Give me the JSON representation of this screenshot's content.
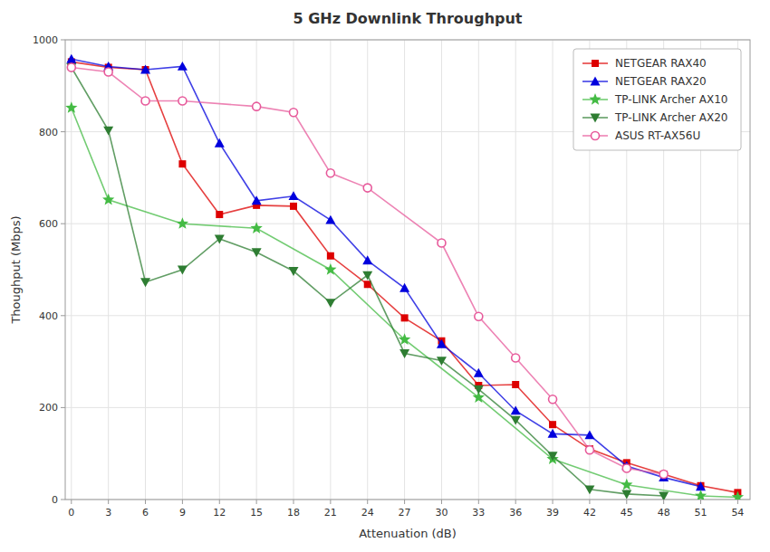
{
  "chart_data": {
    "type": "line",
    "title": "5 GHz Downlink Throughput",
    "x_label": "Attenuation (dB)",
    "y_label": "Thoughput (Mbps)",
    "xlim": [
      -0.5,
      55
    ],
    "ylim": [
      0,
      1000
    ],
    "xticks": [
      0,
      3,
      6,
      9,
      12,
      15,
      18,
      21,
      24,
      27,
      30,
      33,
      36,
      39,
      42,
      45,
      48,
      51,
      54
    ],
    "yticks": [
      0,
      200,
      400,
      600,
      800,
      1000
    ],
    "grid": true,
    "legend": "upper right",
    "series": [
      {
        "name": "NETGEAR RAX40",
        "color": "#dd0000",
        "marker": "square",
        "line_style": "solid",
        "x": [
          0,
          3,
          6,
          9,
          12,
          15,
          18,
          21,
          24,
          27,
          30,
          33,
          36,
          39,
          42,
          45,
          48,
          51,
          54
        ],
        "values": [
          952,
          940,
          935,
          730,
          620,
          640,
          638,
          530,
          468,
          395,
          345,
          248,
          250,
          163,
          110,
          80,
          55,
          30,
          15
        ]
      },
      {
        "name": "NETGEAR RAX20",
        "color": "#0000dd",
        "marker": "triangle-up",
        "line_style": "solid",
        "x": [
          0,
          3,
          6,
          9,
          12,
          15,
          18,
          21,
          24,
          27,
          30,
          33,
          36,
          39,
          42,
          45,
          48,
          51
        ],
        "values": [
          958,
          942,
          935,
          942,
          775,
          650,
          660,
          608,
          520,
          460,
          338,
          275,
          193,
          143,
          140,
          73,
          48,
          28
        ]
      },
      {
        "name": "TP-LINK Archer AX10",
        "color": "#44bb44",
        "marker": "star",
        "line_style": "solid",
        "x": [
          0,
          3,
          9,
          15,
          21,
          27,
          33,
          39,
          45,
          51,
          54
        ],
        "values": [
          852,
          652,
          600,
          590,
          500,
          348,
          222,
          88,
          32,
          8,
          5
        ]
      },
      {
        "name": "TP-LINK Archer AX20",
        "color": "#2e7d32",
        "marker": "triangle-down",
        "line_style": "solid",
        "x": [
          0,
          3,
          6,
          9,
          12,
          15,
          18,
          21,
          24,
          27,
          30,
          33,
          36,
          39,
          42,
          45,
          48
        ],
        "values": [
          940,
          803,
          473,
          500,
          567,
          538,
          497,
          428,
          488,
          318,
          302,
          240,
          173,
          95,
          22,
          12,
          8
        ]
      },
      {
        "name": "ASUS RT-AX56U",
        "color": "#e75a9b",
        "marker": "circle-open",
        "line_style": "solid",
        "x": [
          0,
          3,
          6,
          9,
          15,
          18,
          21,
          24,
          30,
          33,
          36,
          39,
          42,
          45,
          48
        ],
        "values": [
          940,
          930,
          867,
          867,
          855,
          842,
          710,
          678,
          558,
          398,
          308,
          218,
          108,
          68,
          55
        ]
      }
    ]
  }
}
